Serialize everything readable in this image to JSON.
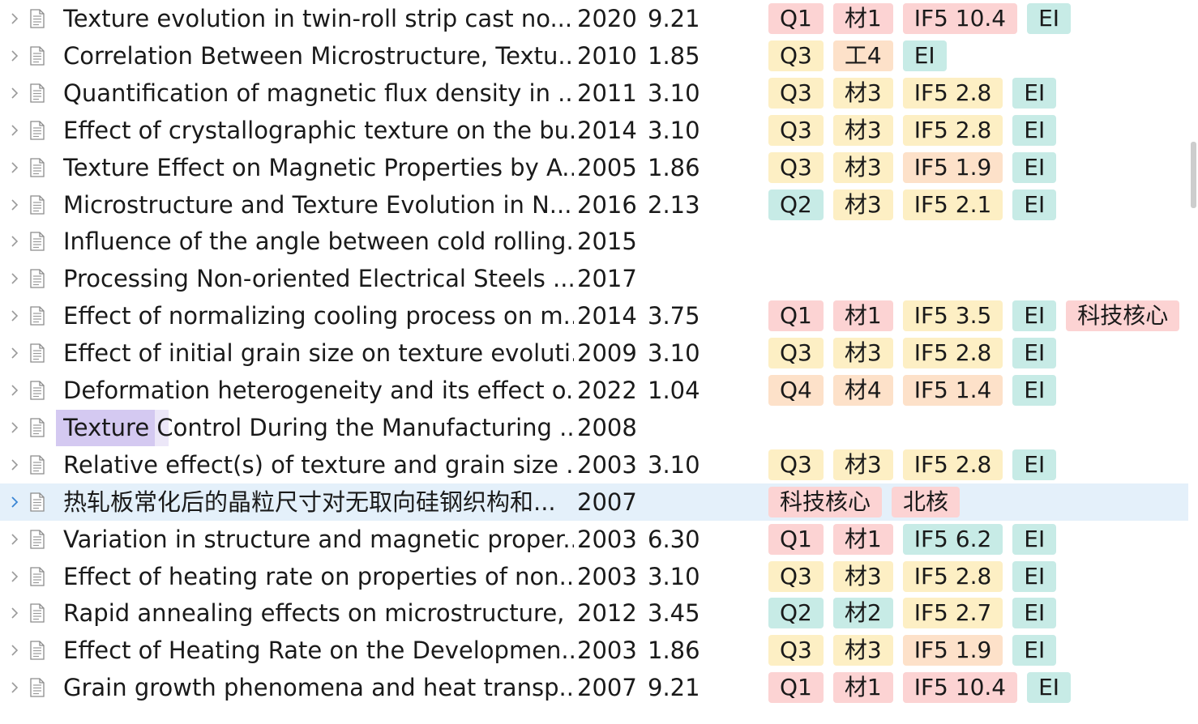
{
  "colors": {
    "Q1": "#fcd3d3",
    "Q2": "#c7ebe6",
    "Q3": "#fdefc4",
    "Q4": "#fde1c9",
    "journal_1": "#fcd3d3",
    "journal_2": "#c7ebe6",
    "journal_3": "#fdefc4",
    "journal_4": "#fde1c9",
    "if_high": "#fcd3d3",
    "if_green": "#c7ebe6",
    "if_mid": "#fdefc4",
    "if_low": "#fde1c9",
    "ei": "#c7ebe6",
    "core": "#fcd3d3",
    "selection": "#e4f0fa",
    "scroll_thumb": "#cdcdcd"
  },
  "icons": {
    "expand": "chevron-right-icon",
    "item": "document-icon"
  },
  "rows": [
    {
      "title": "Texture evolution in twin-roll strip cast no...",
      "year": "2020",
      "impact": "9.21",
      "tags": [
        {
          "text": "Q1",
          "color": "#fcd3d3"
        },
        {
          "text": "材1",
          "color": "#fcd3d3"
        },
        {
          "text": "IF5 10.4",
          "color": "#fcd3d3"
        },
        {
          "text": "EI",
          "color": "#c7ebe6"
        }
      ]
    },
    {
      "title": "Correlation Between Microstructure, Textu...",
      "year": "2010",
      "impact": "1.85",
      "tags": [
        {
          "text": "Q3",
          "color": "#fdefc4"
        },
        {
          "text": "工4",
          "color": "#fde1c9"
        },
        {
          "text": "EI",
          "color": "#c7ebe6"
        }
      ]
    },
    {
      "title": "Quantification of magnetic flux density in ...",
      "year": "2011",
      "impact": "3.10",
      "tags": [
        {
          "text": "Q3",
          "color": "#fdefc4"
        },
        {
          "text": "材3",
          "color": "#fdefc4"
        },
        {
          "text": "IF5 2.8",
          "color": "#fdefc4"
        },
        {
          "text": "EI",
          "color": "#c7ebe6"
        }
      ]
    },
    {
      "title": "Effect of crystallographic texture on the bu...",
      "year": "2014",
      "impact": "3.10",
      "tags": [
        {
          "text": "Q3",
          "color": "#fdefc4"
        },
        {
          "text": "材3",
          "color": "#fdefc4"
        },
        {
          "text": "IF5 2.8",
          "color": "#fdefc4"
        },
        {
          "text": "EI",
          "color": "#c7ebe6"
        }
      ]
    },
    {
      "title": "Texture Effect on Magnetic Properties by A...",
      "year": "2005",
      "impact": "1.86",
      "tags": [
        {
          "text": "Q3",
          "color": "#fdefc4"
        },
        {
          "text": "材3",
          "color": "#fdefc4"
        },
        {
          "text": "IF5 1.9",
          "color": "#fde1c9"
        },
        {
          "text": "EI",
          "color": "#c7ebe6"
        }
      ]
    },
    {
      "title": "Microstructure and Texture Evolution in N...",
      "year": "2016",
      "impact": "2.13",
      "tags": [
        {
          "text": "Q2",
          "color": "#c7ebe6"
        },
        {
          "text": "材3",
          "color": "#fdefc4"
        },
        {
          "text": "IF5 2.1",
          "color": "#fdefc4"
        },
        {
          "text": "EI",
          "color": "#c7ebe6"
        }
      ]
    },
    {
      "title": "Influence of the angle between cold rolling...",
      "year": "2015",
      "impact": "",
      "tags": []
    },
    {
      "title": "Processing Non-oriented Electrical Steels ...",
      "year": "2017",
      "impact": "",
      "tags": []
    },
    {
      "title": "Effect of normalizing cooling process on m...",
      "year": "2014",
      "impact": "3.75",
      "tags": [
        {
          "text": "Q1",
          "color": "#fcd3d3"
        },
        {
          "text": "材1",
          "color": "#fcd3d3"
        },
        {
          "text": "IF5 3.5",
          "color": "#fdefc4"
        },
        {
          "text": "EI",
          "color": "#c7ebe6"
        },
        {
          "text": "科技核心",
          "color": "#fcd3d3"
        }
      ]
    },
    {
      "title": "Effect of initial grain size on texture evoluti...",
      "year": "2009",
      "impact": "3.10",
      "tags": [
        {
          "text": "Q3",
          "color": "#fdefc4"
        },
        {
          "text": "材3",
          "color": "#fdefc4"
        },
        {
          "text": "IF5 2.8",
          "color": "#fdefc4"
        },
        {
          "text": "EI",
          "color": "#c7ebe6"
        }
      ]
    },
    {
      "title": "Deformation heterogeneity and its effect o...",
      "year": "2022",
      "impact": "1.04",
      "tags": [
        {
          "text": "Q4",
          "color": "#fde1c9"
        },
        {
          "text": "材4",
          "color": "#fde1c9"
        },
        {
          "text": "IF5 1.4",
          "color": "#fde1c9"
        },
        {
          "text": "EI",
          "color": "#c7ebe6"
        }
      ]
    },
    {
      "title": "Texture Control During the Manufacturing ...",
      "year": "2008",
      "impact": "",
      "tags": []
    },
    {
      "title": "Relative effect(s) of texture and grain size ...",
      "year": "2003",
      "impact": "3.10",
      "tags": [
        {
          "text": "Q3",
          "color": "#fdefc4"
        },
        {
          "text": "材3",
          "color": "#fdefc4"
        },
        {
          "text": "IF5 2.8",
          "color": "#fdefc4"
        },
        {
          "text": "EI",
          "color": "#c7ebe6"
        }
      ]
    },
    {
      "title": "热轧板常化后的晶粒尺寸对无取向硅钢织构和...",
      "year": "2007",
      "impact": "",
      "selected": true,
      "tags": [
        {
          "text": "科技核心",
          "color": "#fcd3d3"
        },
        {
          "text": "北核",
          "color": "#fcd3d3"
        }
      ]
    },
    {
      "title": "Variation in structure and magnetic proper...",
      "year": "2003",
      "impact": "6.30",
      "tags": [
        {
          "text": "Q1",
          "color": "#fcd3d3"
        },
        {
          "text": "材1",
          "color": "#fcd3d3"
        },
        {
          "text": "IF5 6.2",
          "color": "#c7ebe6"
        },
        {
          "text": "EI",
          "color": "#c7ebe6"
        }
      ]
    },
    {
      "title": "Effect of heating rate on properties of non...",
      "year": "2003",
      "impact": "3.10",
      "tags": [
        {
          "text": "Q3",
          "color": "#fdefc4"
        },
        {
          "text": "材3",
          "color": "#fdefc4"
        },
        {
          "text": "IF5 2.8",
          "color": "#fdefc4"
        },
        {
          "text": "EI",
          "color": "#c7ebe6"
        }
      ]
    },
    {
      "title": "Rapid annealing effects on microstructure, ...",
      "year": "2012",
      "impact": "3.45",
      "tags": [
        {
          "text": "Q2",
          "color": "#c7ebe6"
        },
        {
          "text": "材2",
          "color": "#c7ebe6"
        },
        {
          "text": "IF5 2.7",
          "color": "#fdefc4"
        },
        {
          "text": "EI",
          "color": "#c7ebe6"
        }
      ]
    },
    {
      "title": "Effect of Heating Rate on the Developmen...",
      "year": "2003",
      "impact": "1.86",
      "tags": [
        {
          "text": "Q3",
          "color": "#fdefc4"
        },
        {
          "text": "材3",
          "color": "#fdefc4"
        },
        {
          "text": "IF5 1.9",
          "color": "#fde1c9"
        },
        {
          "text": "EI",
          "color": "#c7ebe6"
        }
      ]
    },
    {
      "title": "Grain growth phenomena and heat transp...",
      "year": "2007",
      "impact": "9.21",
      "tags": [
        {
          "text": "Q1",
          "color": "#fcd3d3"
        },
        {
          "text": "材1",
          "color": "#fcd3d3"
        },
        {
          "text": "IF5 10.4",
          "color": "#fcd3d3"
        },
        {
          "text": "EI",
          "color": "#c7ebe6"
        }
      ]
    }
  ]
}
